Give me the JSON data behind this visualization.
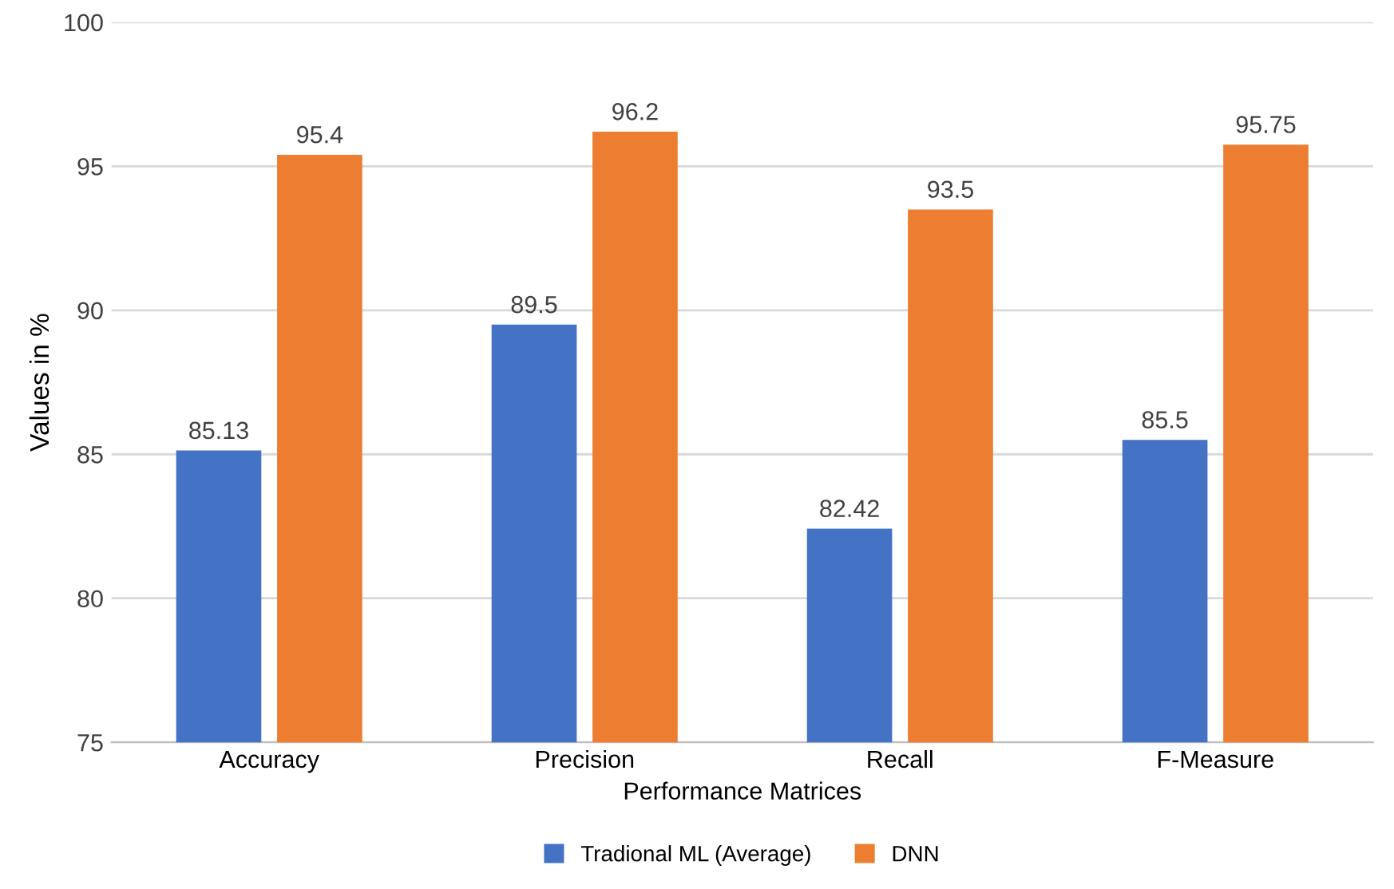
{
  "chart_data": {
    "type": "bar",
    "xlabel": "Performance Matrices",
    "ylabel": "Values in %",
    "categories": [
      "Accuracy",
      "Precision",
      "Recall",
      "F-Measure"
    ],
    "series": [
      {
        "name": "Tradional ML (Average)",
        "color": "#4472c4",
        "values": [
          85.13,
          89.5,
          82.42,
          85.5
        ]
      },
      {
        "name": "DNN",
        "color": "#ed7d31",
        "values": [
          95.4,
          96.2,
          93.5,
          95.75
        ]
      }
    ],
    "ylim": [
      75,
      100
    ],
    "yticks": [
      75,
      80,
      85,
      90,
      95,
      100
    ],
    "grid": "y",
    "legend": "bottom",
    "data_labels": true
  }
}
